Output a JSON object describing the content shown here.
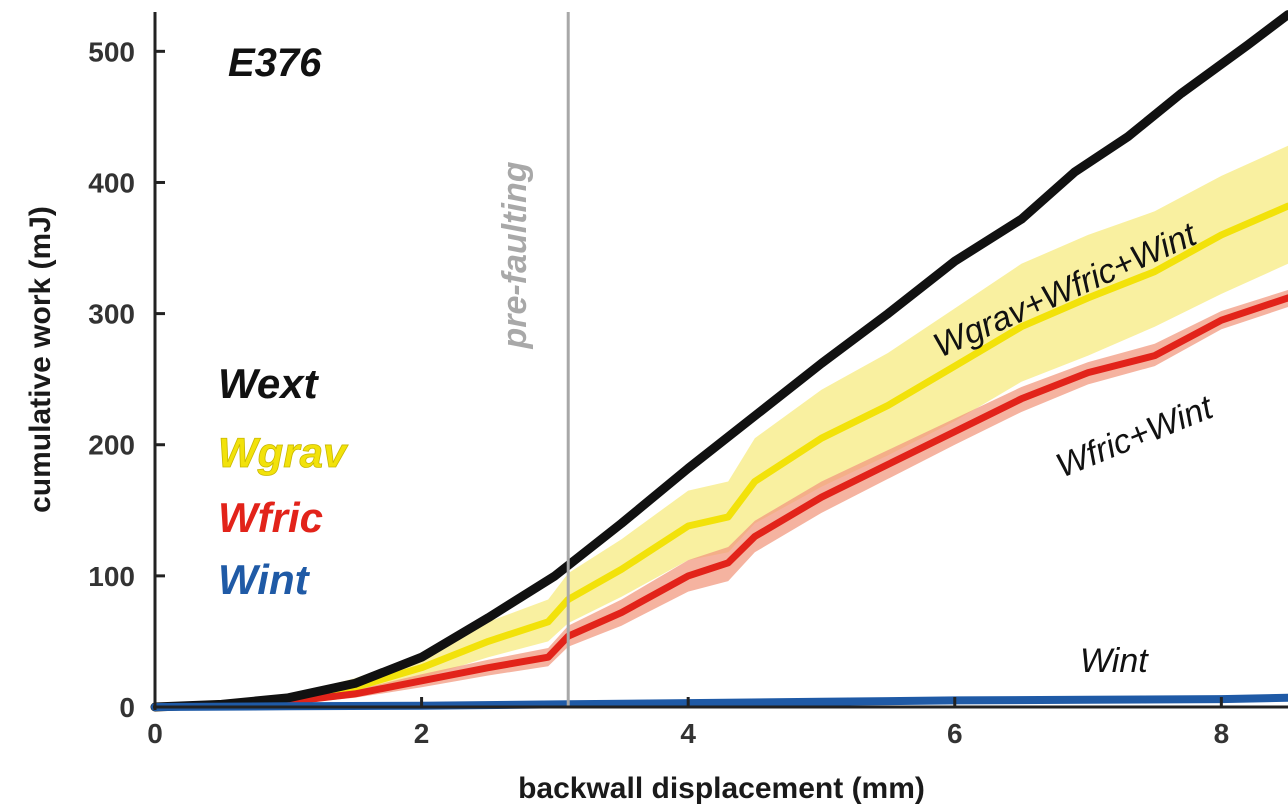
{
  "chart_data": {
    "type": "line",
    "title": "",
    "experiment_label": "E376",
    "xlabel": "backwall displacement (mm)",
    "ylabel": "cumulative work (mJ)",
    "xlim": [
      0,
      8.5
    ],
    "ylim": [
      0,
      530
    ],
    "xticks": [
      0,
      2,
      4,
      6,
      8
    ],
    "yticks": [
      0,
      100,
      200,
      300,
      400,
      500
    ],
    "xtick_labels": [
      "0",
      "2",
      "4",
      "6",
      "8"
    ],
    "ytick_labels": [
      "0",
      "100",
      "200",
      "300",
      "400",
      "500"
    ],
    "grid": false,
    "vertical_line": {
      "x": 3.1,
      "label": "pre-faulting",
      "color": "#a8a8a8"
    },
    "legend": {
      "placement": "middle-left",
      "entries": [
        {
          "label": "Wext",
          "color": "#111111"
        },
        {
          "label": "Wgrav",
          "color": "#f2e20a"
        },
        {
          "label": "Wfric",
          "color": "#e2231a"
        },
        {
          "label": "Wint",
          "color": "#1f5aa6"
        }
      ]
    },
    "series": [
      {
        "name": "Wext",
        "color": "#111111",
        "x": [
          0,
          0.5,
          1,
          1.5,
          2,
          2.5,
          3,
          3.5,
          4,
          4.5,
          5,
          5.5,
          6,
          6.5,
          6.9,
          7.3,
          7.7,
          8.2,
          8.5
        ],
        "y": [
          0,
          2,
          7,
          18,
          38,
          68,
          100,
          140,
          182,
          222,
          262,
          300,
          340,
          372,
          408,
          435,
          468,
          505,
          528
        ]
      },
      {
        "name": "Wgrav+Wfric+Wint",
        "color": "#f2e20a",
        "band_color": "#f7eb80",
        "x": [
          0,
          0.5,
          1,
          1.5,
          2,
          2.5,
          2.95,
          3.1,
          3.5,
          4,
          4.3,
          4.5,
          5,
          5.5,
          6,
          6.5,
          7,
          7.5,
          8,
          8.5
        ],
        "y": [
          0,
          2,
          6,
          15,
          30,
          50,
          65,
          82,
          105,
          138,
          145,
          172,
          205,
          230,
          260,
          290,
          312,
          332,
          360,
          382
        ],
        "lower": [
          0,
          1,
          4,
          10,
          22,
          38,
          50,
          64,
          84,
          112,
          118,
          140,
          168,
          192,
          218,
          248,
          268,
          290,
          315,
          338
        ],
        "upper": [
          0,
          4,
          9,
          22,
          40,
          65,
          82,
          102,
          128,
          165,
          172,
          205,
          242,
          270,
          304,
          338,
          360,
          378,
          405,
          428
        ],
        "label": "Wgrav+Wfric+Wint"
      },
      {
        "name": "Wfric+Wint",
        "color": "#e2231a",
        "band_color": "#f29a80",
        "x": [
          0,
          0.5,
          1,
          1.5,
          2,
          2.5,
          2.95,
          3.1,
          3.5,
          4,
          4.3,
          4.5,
          5,
          5.5,
          6,
          6.5,
          7,
          7.5,
          8,
          8.5
        ],
        "y": [
          0,
          1,
          4,
          10,
          20,
          30,
          38,
          54,
          72,
          100,
          110,
          130,
          160,
          185,
          210,
          235,
          255,
          268,
          295,
          312
        ],
        "lower": [
          0,
          0,
          2,
          7,
          15,
          24,
          31,
          46,
          62,
          88,
          96,
          118,
          148,
          174,
          200,
          225,
          246,
          260,
          288,
          305
        ],
        "upper": [
          0,
          2,
          6,
          13,
          25,
          36,
          45,
          62,
          82,
          112,
          122,
          142,
          172,
          196,
          220,
          244,
          263,
          277,
          302,
          318
        ],
        "label": "Wfric+Wint"
      },
      {
        "name": "Wint",
        "color": "#1f5aa6",
        "x": [
          0,
          1,
          2,
          3,
          4,
          5,
          6,
          7,
          8,
          8.5
        ],
        "y": [
          0,
          0.5,
          1,
          2,
          3,
          4,
          5,
          5.5,
          6,
          7
        ],
        "label": "Wint"
      }
    ]
  }
}
